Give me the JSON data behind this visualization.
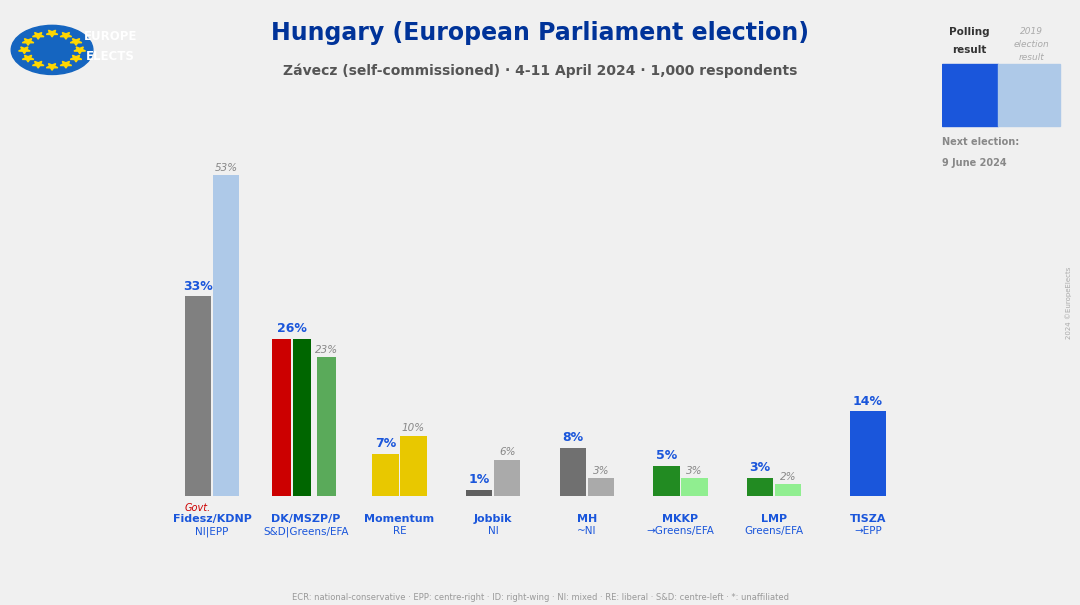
{
  "title": "Hungary (European Parliament election)",
  "subtitle": "Závecz (self-commissioned) · 4-11 April 2024 · 1,000 respondents",
  "background_color": "#f0f0f0",
  "title_color": "#003399",
  "subtitle_color": "#555555",
  "parties": [
    {
      "name": "Fidesz/KDNP",
      "subname": "NI|EPP",
      "gov_label": "Govt.",
      "poll_value": 33,
      "prev_value": 53,
      "poll_color": "#808080",
      "prev_color": "#aec9e8",
      "poll_label": "33%",
      "prev_label": "53%",
      "type": "two"
    },
    {
      "name": "DK/MSZP/P",
      "subname": "S&D|Greens/EFA",
      "gov_label": null,
      "poll_value": 26,
      "prev_value": 23,
      "poll_color": "#cc0000",
      "prev_color": "#5aaa5a",
      "poll_label": "26%",
      "prev_label": "23%",
      "type": "three",
      "mid_color": "#006600"
    },
    {
      "name": "Momentum",
      "subname": "RE",
      "gov_label": null,
      "poll_value": 7,
      "prev_value": 10,
      "poll_color": "#e8c800",
      "prev_color": "#e8c800",
      "poll_label": "7%",
      "prev_label": "10%",
      "type": "two"
    },
    {
      "name": "Jobbik",
      "subname": "NI",
      "gov_label": null,
      "poll_value": 1,
      "prev_value": 6,
      "poll_color": "#606060",
      "prev_color": "#aaaaaa",
      "poll_label": "1%",
      "prev_label": "6%",
      "type": "two"
    },
    {
      "name": "MH",
      "subname": "~NI",
      "gov_label": null,
      "poll_value": 8,
      "prev_value": 3,
      "poll_color": "#707070",
      "prev_color": "#aaaaaa",
      "poll_label": "8%",
      "prev_label": "3%",
      "type": "two"
    },
    {
      "name": "MKKP",
      "subname": "→Greens/EFA",
      "gov_label": null,
      "poll_value": 5,
      "prev_value": 3,
      "poll_color": "#228B22",
      "prev_color": "#90ee90",
      "poll_label": "5%",
      "prev_label": "3%",
      "type": "two"
    },
    {
      "name": "LMP",
      "subname": "Greens/EFA",
      "gov_label": null,
      "poll_value": 3,
      "prev_value": 2,
      "poll_color": "#228B22",
      "prev_color": "#90ee90",
      "poll_label": "3%",
      "prev_label": "2%",
      "type": "two"
    },
    {
      "name": "TISZA",
      "subname": "→EPP",
      "gov_label": null,
      "poll_value": 14,
      "prev_value": null,
      "poll_color": "#1a56db",
      "prev_color": null,
      "poll_label": "14%",
      "prev_label": null,
      "type": "one"
    }
  ],
  "footer_text": "ECR: national-conservative · EPP: centre-right · ID: right-wing · NI: mixed · RE: liberal · S&D: centre-left · *: unaffiliated",
  "legend_poll_color": "#1a56db",
  "legend_prev_color": "#aec9e8",
  "logo_bg_color": "#003399",
  "logo_circle_color": "#1a56db",
  "y_max": 58
}
